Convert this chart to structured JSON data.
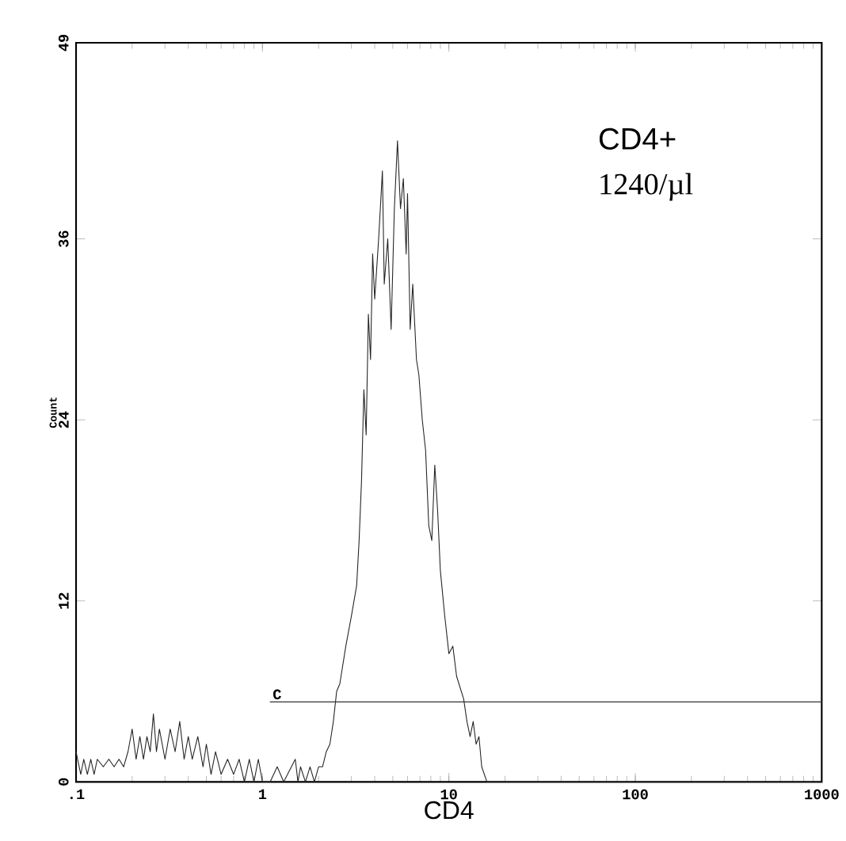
{
  "chart_data": {
    "type": "line",
    "xlabel": "CD4",
    "ylabel": "Count",
    "log": "x",
    "xlim": [
      0.1,
      1000
    ],
    "ylim": [
      0,
      49
    ],
    "xticks": [
      {
        "value": 0.1,
        "label": ".1"
      },
      {
        "value": 1,
        "label": "1"
      },
      {
        "value": 10,
        "label": "10"
      },
      {
        "value": 100,
        "label": "100"
      },
      {
        "value": 1000,
        "label": "1000"
      }
    ],
    "yticks": [
      0,
      12,
      24,
      36,
      49
    ],
    "grid": false,
    "marker": "none",
    "line_style": "solid",
    "annotations": [
      "CD4+",
      "1240/µl",
      "C"
    ],
    "series": [
      {
        "color": "#222222",
        "x": [
          0.1,
          0.106,
          0.11,
          0.115,
          0.12,
          0.125,
          0.13,
          0.14,
          0.15,
          0.16,
          0.17,
          0.18,
          0.19,
          0.2,
          0.21,
          0.22,
          0.23,
          0.24,
          0.25,
          0.26,
          0.27,
          0.28,
          0.3,
          0.32,
          0.34,
          0.36,
          0.38,
          0.4,
          0.42,
          0.45,
          0.48,
          0.5,
          0.53,
          0.56,
          0.6,
          0.65,
          0.7,
          0.75,
          0.8,
          0.85,
          0.9,
          0.95,
          1.0,
          1.1,
          1.2,
          1.3,
          1.5,
          1.55,
          1.6,
          1.7,
          1.8,
          1.9,
          2.0,
          2.1,
          2.2,
          2.3,
          2.4,
          2.5,
          2.6,
          2.8,
          3.0,
          3.2,
          3.3,
          3.4,
          3.5,
          3.6,
          3.7,
          3.8,
          3.9,
          4.0,
          4.2,
          4.4,
          4.5,
          4.7,
          4.9,
          5.1,
          5.3,
          5.5,
          5.7,
          5.9,
          6.0,
          6.2,
          6.4,
          6.7,
          6.9,
          7.2,
          7.5,
          7.8,
          8.1,
          8.4,
          8.7,
          9.0,
          9.5,
          10,
          10.5,
          11,
          12,
          12.5,
          13,
          13.5,
          14,
          14.5,
          15,
          16,
          20,
          100,
          1000
        ],
        "values": [
          2,
          0.5,
          1.5,
          0.5,
          1.5,
          0.5,
          1.5,
          1,
          1.5,
          1,
          1.5,
          1,
          2,
          3.5,
          1.5,
          3,
          1.5,
          3,
          2,
          4.5,
          2,
          3.5,
          1.5,
          3.5,
          2,
          4,
          1.5,
          3,
          1.5,
          3,
          1,
          2.5,
          0.5,
          2,
          0.5,
          1.5,
          0.5,
          1.5,
          0,
          1.5,
          0,
          1.5,
          0,
          0,
          1,
          0,
          1.5,
          0,
          1,
          0,
          1,
          0,
          1,
          1,
          2,
          2.5,
          4,
          6,
          6.5,
          9,
          11,
          13,
          16,
          20,
          26,
          23,
          31,
          28,
          35,
          32,
          36,
          40.5,
          33,
          36,
          30,
          38,
          42.5,
          38,
          40,
          35,
          39,
          30,
          33,
          28,
          27,
          24,
          22,
          17,
          16,
          21,
          18,
          14,
          11,
          8.5,
          9,
          7,
          5.5,
          4,
          3,
          4,
          2.5,
          3,
          1,
          0,
          0,
          0,
          0
        ]
      },
      {
        "color": "#333333",
        "x": [
          1.1,
          1000
        ],
        "values": [
          5.3,
          5.3
        ]
      }
    ]
  }
}
